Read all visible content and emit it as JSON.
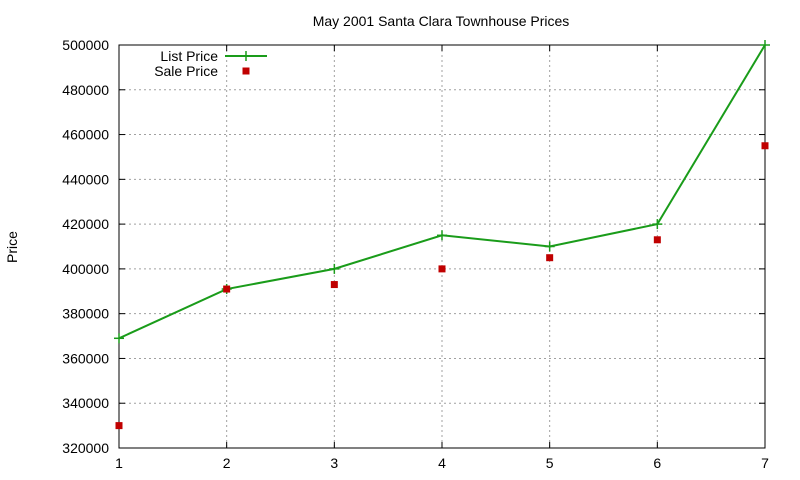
{
  "chart_data": {
    "type": "line",
    "title": "May 2001 Santa Clara Townhouse Prices",
    "xlabel": "",
    "ylabel": "Price",
    "x": [
      1,
      2,
      3,
      4,
      5,
      6,
      7
    ],
    "xlim": [
      1,
      7
    ],
    "ylim": [
      320000,
      500000
    ],
    "xticks": [
      1,
      2,
      3,
      4,
      5,
      6,
      7
    ],
    "yticks": [
      320000,
      340000,
      360000,
      380000,
      400000,
      420000,
      440000,
      460000,
      480000,
      500000
    ],
    "grid": true,
    "legend_position": "top-left",
    "series": [
      {
        "name": "List Price",
        "style": "linespoints",
        "marker": "plus",
        "color": "#1a9c1a",
        "values": [
          369000,
          391000,
          400000,
          415000,
          410000,
          420000,
          500000
        ]
      },
      {
        "name": "Sale Price",
        "style": "points",
        "marker": "square",
        "color": "#c00000",
        "values": [
          330000,
          391000,
          393000,
          400000,
          405000,
          413000,
          455000
        ]
      }
    ]
  }
}
